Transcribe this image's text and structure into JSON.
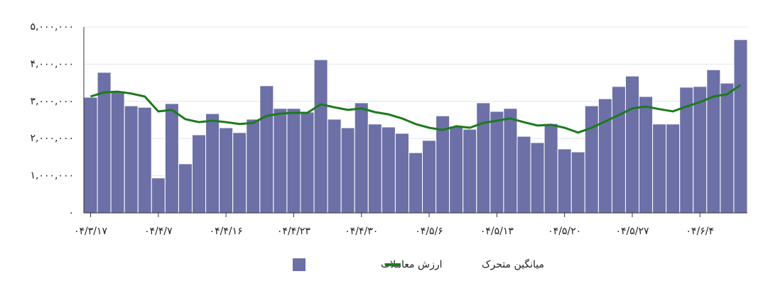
{
  "chart_data": {
    "type": "bar",
    "categories": [
      "۰۴/۳/۱۷",
      null,
      null,
      null,
      null,
      "۰۴/۴/۷",
      null,
      null,
      null,
      null,
      "۰۴/۴/۱۶",
      null,
      null,
      null,
      null,
      "۰۴/۴/۲۳",
      null,
      null,
      null,
      null,
      "۰۴/۴/۳۰",
      null,
      null,
      null,
      null,
      "۰۴/۵/۶",
      null,
      null,
      null,
      null,
      "۰۴/۵/۱۳",
      null,
      null,
      null,
      null,
      "۰۴/۵/۲۰",
      null,
      null,
      null,
      null,
      "۰۴/۵/۲۷",
      null,
      null,
      null,
      null,
      "۰۴/۶/۴",
      null,
      null,
      null
    ],
    "series": [
      {
        "name": "ارزش معاملات",
        "type": "bar",
        "color": "#6c70a7",
        "values": [
          3110000,
          3780000,
          3280000,
          2880000,
          2840000,
          940000,
          2940000,
          1320000,
          2100000,
          2670000,
          2290000,
          2160000,
          2520000,
          3420000,
          2810000,
          2810000,
          2710000,
          4120000,
          2520000,
          2290000,
          2960000,
          2390000,
          2310000,
          2140000,
          1620000,
          1950000,
          2610000,
          2330000,
          2250000,
          2960000,
          2730000,
          2810000,
          2060000,
          1890000,
          2400000,
          1720000,
          1640000,
          2880000,
          3070000,
          3400000,
          3680000,
          3130000,
          2390000,
          2390000,
          3380000,
          3400000,
          3850000,
          3490000,
          4660000
        ]
      },
      {
        "name": "میانگین متحرک",
        "type": "line",
        "color": "#1d7a1d",
        "values": [
          3130000,
          3240000,
          3260000,
          3210000,
          3130000,
          2730000,
          2770000,
          2520000,
          2440000,
          2480000,
          2440000,
          2390000,
          2420000,
          2610000,
          2670000,
          2690000,
          2690000,
          2920000,
          2840000,
          2770000,
          2810000,
          2710000,
          2650000,
          2540000,
          2390000,
          2290000,
          2230000,
          2330000,
          2290000,
          2420000,
          2480000,
          2540000,
          2440000,
          2350000,
          2370000,
          2290000,
          2160000,
          2290000,
          2460000,
          2630000,
          2810000,
          2860000,
          2790000,
          2730000,
          2860000,
          2980000,
          3130000,
          3190000,
          3440000
        ]
      }
    ],
    "ylim": [
      0,
      5000000
    ],
    "yticks": [
      {
        "value": 0,
        "label": "۰"
      },
      {
        "value": 1000000,
        "label": "۱,۰۰۰,۰۰۰"
      },
      {
        "value": 2000000,
        "label": "۲,۰۰۰,۰۰۰"
      },
      {
        "value": 3000000,
        "label": "۳,۰۰۰,۰۰۰"
      },
      {
        "value": 4000000,
        "label": "۴,۰۰۰,۰۰۰"
      },
      {
        "value": 5000000,
        "label": "۵,۰۰۰,۰۰۰"
      }
    ],
    "grid": true
  }
}
